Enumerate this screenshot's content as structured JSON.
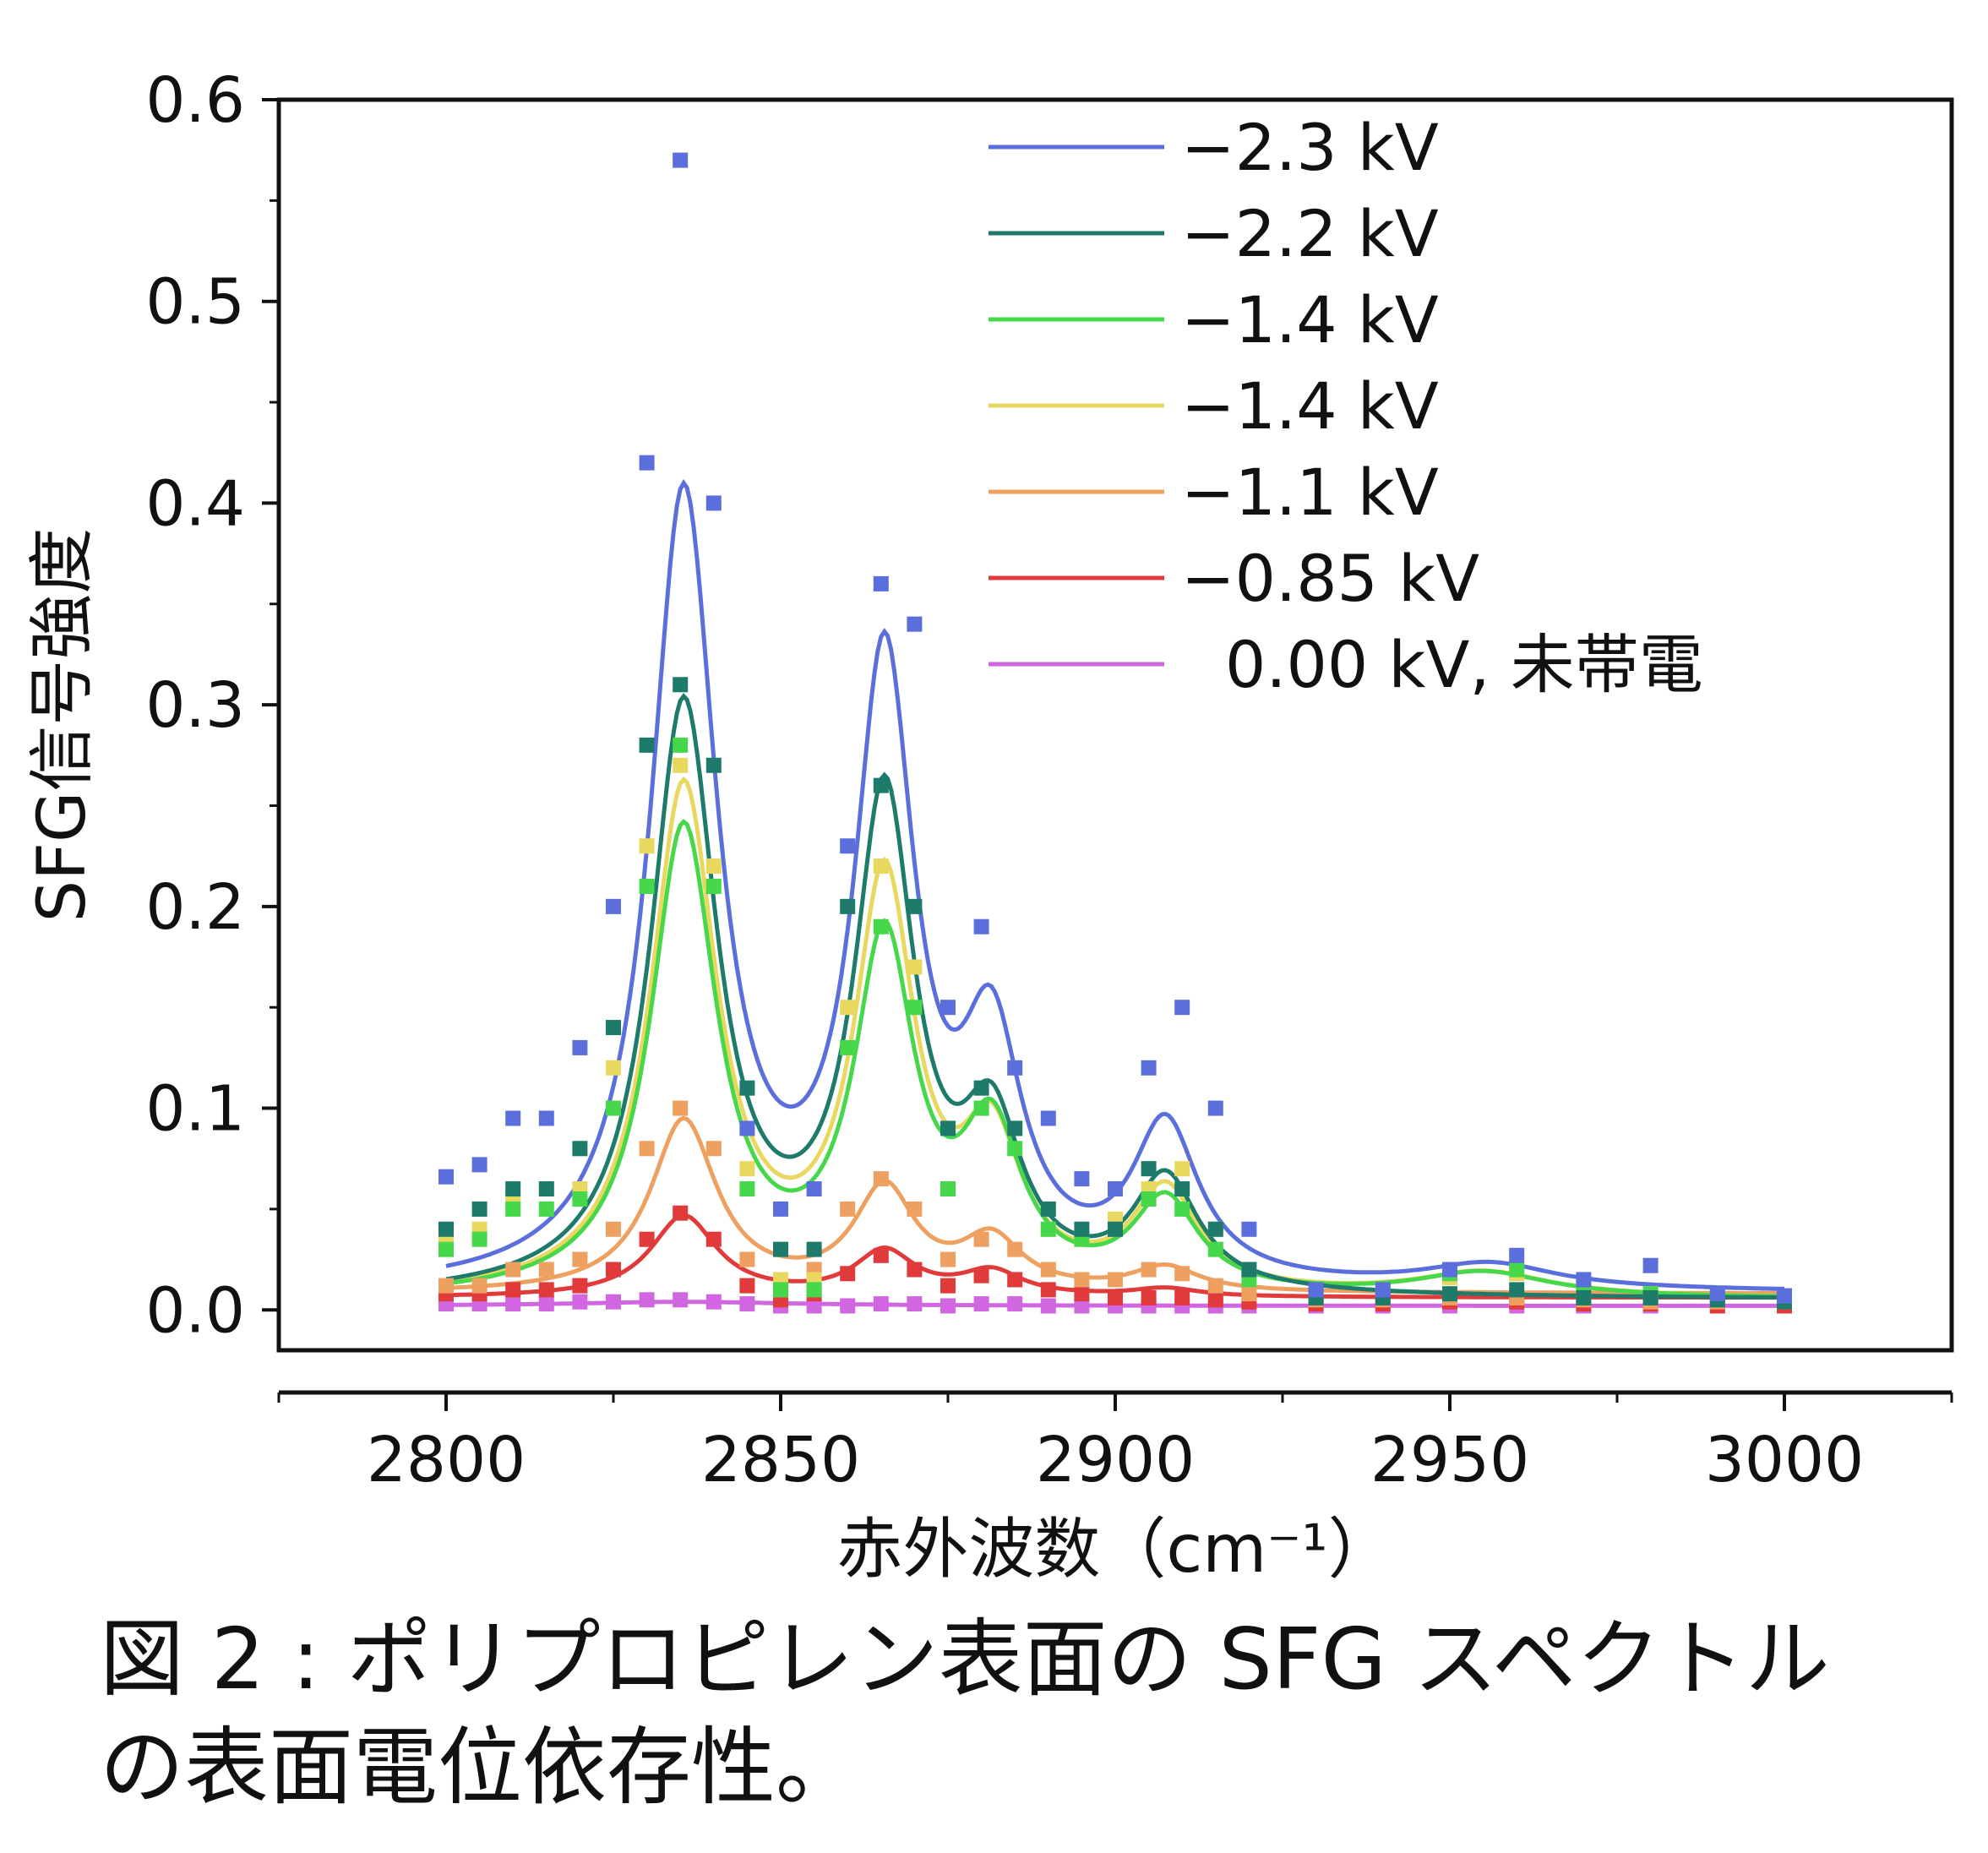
{
  "chart_data": {
    "type": "scatter",
    "title": "",
    "xlabel": "赤外波数（cm⁻¹）",
    "ylabel": "SFG信号強度",
    "xlim": [
      2775,
      3025
    ],
    "ylim": [
      -0.02,
      0.6
    ],
    "xticks": [
      2800,
      2850,
      2900,
      2950,
      3000
    ],
    "xtick_labels": [
      "2800",
      "2850",
      "2900",
      "2950",
      "3000"
    ],
    "yticks": [
      0.0,
      0.1,
      0.2,
      0.3,
      0.4,
      0.5,
      0.6
    ],
    "ytick_labels": [
      "0.0",
      "0.1",
      "0.2",
      "0.3",
      "0.4",
      "0.5",
      "0.6"
    ],
    "legend_position": "top-right",
    "x": [
      2800,
      2805,
      2810,
      2815,
      2820,
      2825,
      2830,
      2835,
      2840,
      2845,
      2850,
      2855,
      2860,
      2865,
      2870,
      2875,
      2880,
      2885,
      2890,
      2895,
      2900,
      2905,
      2910,
      2915,
      2920,
      2930,
      2940,
      2950,
      2960,
      2970,
      2980,
      2990,
      3000
    ],
    "series": [
      {
        "name": "−2.3 kV",
        "color": "#5b6fdc",
        "amplitudes": [
          0.39,
          0.3,
          0.11,
          0.076,
          0.012
        ],
        "centers": [
          2835.5,
          2865.5,
          2881.5,
          2907.5,
          2956
        ],
        "widths": [
          6,
          5.5,
          5.5,
          6,
          12
        ],
        "baseline": 0.008,
        "points": [
          0.066,
          0.072,
          0.095,
          0.095,
          0.13,
          0.2,
          0.42,
          0.57,
          0.4,
          0.09,
          0.05,
          0.06,
          0.23,
          0.36,
          0.34,
          0.15,
          0.19,
          0.12,
          0.095,
          0.065,
          0.06,
          0.12,
          0.15,
          0.1,
          0.04,
          0.01,
          0.01,
          0.02,
          0.027,
          0.015,
          0.022,
          0.008,
          0.007
        ]
      },
      {
        "name": "−2.2 kV",
        "color": "#1e7a6a",
        "amplitudes": [
          0.29,
          0.24,
          0.075,
          0.055
        ],
        "centers": [
          2835.5,
          2865.5,
          2881.5,
          2907.5
        ],
        "widths": [
          6,
          5.5,
          5.5,
          6
        ],
        "baseline": 0.005,
        "points": [
          0.04,
          0.05,
          0.06,
          0.06,
          0.08,
          0.14,
          0.28,
          0.31,
          0.27,
          0.11,
          0.03,
          0.03,
          0.2,
          0.26,
          0.2,
          0.09,
          0.11,
          0.09,
          0.05,
          0.04,
          0.04,
          0.07,
          0.06,
          0.04,
          0.02,
          0.006,
          0.006,
          0.008,
          0.01,
          0.006,
          0.006,
          0.005,
          0.004
        ]
      },
      {
        "name": "−1.4 kV",
        "color": "#46d84a",
        "amplitudes": [
          0.23,
          0.17,
          0.075,
          0.045,
          0.012
        ],
        "centers": [
          2835.5,
          2865.5,
          2881.5,
          2907.5,
          2955
        ],
        "widths": [
          6,
          5.5,
          5.5,
          6,
          12
        ],
        "baseline": 0.005,
        "points": [
          0.03,
          0.035,
          0.05,
          0.05,
          0.055,
          0.1,
          0.21,
          0.28,
          0.21,
          0.06,
          0.01,
          0.01,
          0.13,
          0.19,
          0.15,
          0.06,
          0.1,
          0.08,
          0.04,
          0.035,
          0.04,
          0.055,
          0.05,
          0.03,
          0.015,
          0.006,
          0.01,
          0.018,
          0.02,
          0.01,
          0.008,
          0.006,
          0.005
        ]
      },
      {
        "name": "−1.4 kV",
        "color": "#e8d860",
        "amplitudes": [
          0.25,
          0.2,
          0.07,
          0.05,
          0.012
        ],
        "centers": [
          2835.5,
          2865.5,
          2881.5,
          2907.5,
          2955
        ],
        "widths": [
          6,
          5.5,
          5.5,
          6,
          12
        ],
        "baseline": 0.005,
        "points": [
          0.035,
          0.04,
          0.055,
          0.06,
          0.06,
          0.12,
          0.23,
          0.27,
          0.22,
          0.07,
          0.015,
          0.015,
          0.15,
          0.22,
          0.17,
          0.06,
          0.1,
          0.09,
          0.04,
          0.035,
          0.045,
          0.06,
          0.07,
          0.04,
          0.02,
          0.006,
          0.01,
          0.016,
          0.018,
          0.01,
          0.008,
          0.006,
          0.005
        ]
      },
      {
        "name": "−1.1 kV",
        "color": "#eea060",
        "amplitudes": [
          0.085,
          0.05,
          0.025,
          0.012
        ],
        "centers": [
          2835.5,
          2865.5,
          2881.5,
          2907.5
        ],
        "widths": [
          6,
          5.5,
          5.5,
          6
        ],
        "baseline": 0.008,
        "points": [
          0.012,
          0.012,
          0.02,
          0.02,
          0.025,
          0.04,
          0.08,
          0.1,
          0.08,
          0.025,
          0.01,
          0.02,
          0.05,
          0.065,
          0.05,
          0.025,
          0.035,
          0.03,
          0.02,
          0.015,
          0.015,
          0.02,
          0.018,
          0.012,
          0.008,
          0.005,
          0.005,
          0.006,
          0.006,
          0.005,
          0.004,
          0.004,
          0.004
        ]
      },
      {
        "name": "−0.85 kV",
        "color": "#e03a3a",
        "amplitudes": [
          0.04,
          0.022,
          0.012,
          0.004
        ],
        "centers": [
          2835.5,
          2865.5,
          2881.5,
          2907.5
        ],
        "widths": [
          6,
          5.5,
          5.5,
          6
        ],
        "baseline": 0.006,
        "points": [
          0.008,
          0.008,
          0.01,
          0.01,
          0.012,
          0.02,
          0.035,
          0.048,
          0.035,
          0.012,
          0.005,
          0.008,
          0.018,
          0.027,
          0.02,
          0.012,
          0.017,
          0.015,
          0.01,
          0.008,
          0.006,
          0.006,
          0.006,
          0.005,
          0.004,
          0.003,
          0.003,
          0.004,
          0.004,
          0.003,
          0.003,
          0.002,
          0.002
        ]
      },
      {
        "name": "0.00 kV, 未帯電",
        "color": "#d066e0",
        "amplitudes": [
          0.002
        ],
        "centers": [
          2835.5
        ],
        "widths": [
          20
        ],
        "baseline": 0.002,
        "points": [
          0.003,
          0.003,
          0.003,
          0.003,
          0.004,
          0.004,
          0.005,
          0.005,
          0.004,
          0.003,
          0.002,
          0.002,
          0.002,
          0.003,
          0.003,
          0.002,
          0.003,
          0.003,
          0.002,
          0.002,
          0.002,
          0.002,
          0.002,
          0.002,
          0.002,
          0.002,
          0.002,
          0.002,
          0.002,
          0.002,
          0.002,
          0.002,
          0.002
        ]
      }
    ]
  },
  "caption": {
    "line1": "図 2 : ポリプロピレン表面の SFG スペクトル",
    "line2": "の表面電位依存性。"
  }
}
